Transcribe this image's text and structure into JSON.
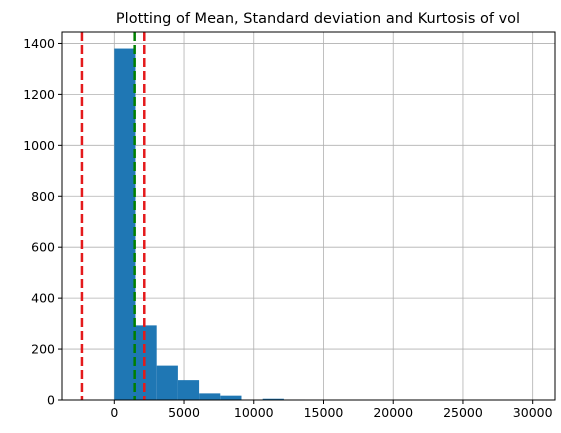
{
  "chart_data": {
    "type": "bar",
    "title": "Plotting of Mean, Standard deviation and Kurtosis of vol",
    "xlabel": "",
    "ylabel": "",
    "xlim": [
      -3750,
      31600
    ],
    "ylim": [
      0,
      1445
    ],
    "grid": true,
    "x_ticks": [
      0,
      5000,
      10000,
      15000,
      20000,
      25000,
      30000
    ],
    "y_ticks": [
      0,
      200,
      400,
      600,
      800,
      1000,
      1200,
      1400
    ],
    "bin_edges": [
      0,
      1520,
      3040,
      4560,
      6080,
      7600,
      9120,
      10640,
      12160,
      13680,
      15200,
      16720,
      18240,
      19760,
      21280,
      22800,
      24320,
      25840,
      27360,
      28880,
      30400
    ],
    "values": [
      1380,
      293,
      135,
      78,
      26,
      17,
      0,
      5,
      2,
      0,
      0,
      0,
      0,
      0,
      0,
      0,
      0,
      0,
      0,
      1
    ],
    "bar_color": "#1f77b4",
    "vlines": [
      {
        "x": -2320,
        "color": "#e41a1c"
      },
      {
        "x": 1460,
        "color": "#008000"
      },
      {
        "x": 2150,
        "color": "#e41a1c"
      }
    ]
  }
}
